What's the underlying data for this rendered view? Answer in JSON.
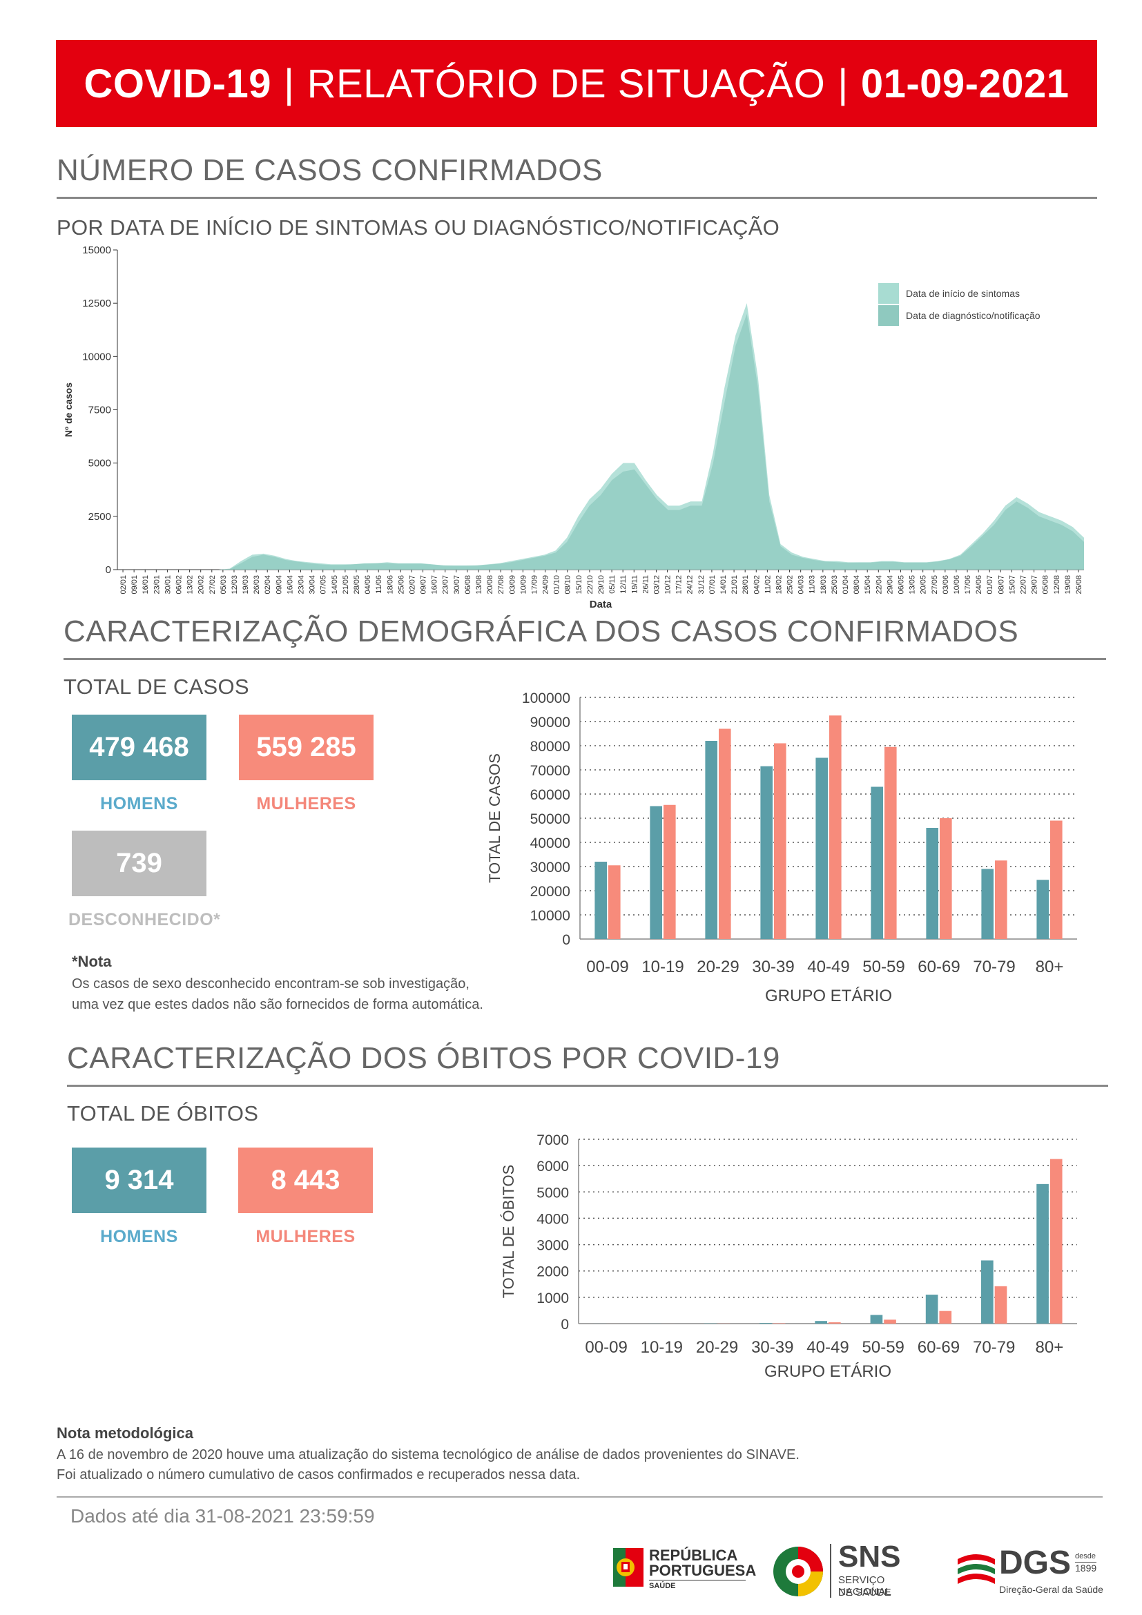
{
  "header": {
    "part1": "COVID-19",
    "sep1": "|",
    "part2": "RELATÓRIO DE SITUAÇÃO",
    "sep2": "|",
    "part3": "01-09-2021"
  },
  "section_cases": {
    "title": "NÚMERO DE CASOS CONFIRMADOS",
    "subtitle": "POR DATA DE INÍCIO DE SINTOMAS OU DIAGNÓSTICO/NOTIFICAÇÃO"
  },
  "section_demo": {
    "title": "CARACTERIZAÇÃO DEMOGRÁFICA DOS CASOS CONFIRMADOS",
    "total_label": "TOTAL DE CASOS",
    "men_value": "479 468",
    "men_label": "HOMENS",
    "women_value": "559 285",
    "women_label": "MULHERES",
    "unknown_value": "739",
    "unknown_label": "DESCONHECIDO*",
    "note_title": "*Nota",
    "note_line1": "Os casos de sexo desconhecido encontram-se sob investigação,",
    "note_line2": "uma vez que estes dados não são fornecidos de forma automática."
  },
  "section_deaths": {
    "title": "CARACTERIZAÇÃO DOS ÓBITOS POR COVID-19",
    "total_label": "TOTAL DE ÓBITOS",
    "men_value": "9 314",
    "men_label": "HOMENS",
    "women_value": "8 443",
    "women_label": "MULHERES"
  },
  "method_note": {
    "title": "Nota metodológica",
    "line1": "A 16 de novembro de 2020 houve uma atualização do sistema tecnológico de análise de dados provenientes do SINAVE.",
    "line2": "Foi atualizado o número cumulativo de casos confirmados e recuperados nessa data."
  },
  "footer": {
    "data_until": "Dados até dia 31-08-2021 23:59:59",
    "logo1_line1": "REPÚBLICA",
    "logo1_line2": "PORTUGUESA",
    "logo1_line3": "SAÚDE",
    "logo2_main": "SNS",
    "logo2_line1": "SERVIÇO NACIONAL",
    "logo2_line2": "DE SAÚDE",
    "logo3_main": "DGS",
    "logo3_since1": "desde",
    "logo3_since2": "1899",
    "logo3_sub": "Direção-Geral da Saúde",
    "colors": {
      "red": "#e3000f",
      "green": "#1e7a3b",
      "yellow": "#f2c100"
    }
  },
  "chart_data": [
    {
      "type": "area",
      "title": "",
      "xlabel": "Data",
      "ylabel": "Nº de casos",
      "ylim": [
        0,
        15000
      ],
      "yticks": [
        0,
        2500,
        5000,
        7500,
        10000,
        12500,
        15000
      ],
      "xticks": [
        "02/01",
        "09/01",
        "16/01",
        "23/01",
        "30/01",
        "06/02",
        "13/02",
        "20/02",
        "27/02",
        "05/03",
        "12/03",
        "19/03",
        "26/03",
        "02/04",
        "09/04",
        "16/04",
        "23/04",
        "30/04",
        "07/05",
        "14/05",
        "21/05",
        "28/05",
        "04/06",
        "11/06",
        "18/06",
        "25/06",
        "02/07",
        "09/07",
        "16/07",
        "23/07",
        "30/07",
        "06/08",
        "13/08",
        "20/08",
        "27/08",
        "03/09",
        "10/09",
        "17/09",
        "24/09",
        "01/10",
        "08/10",
        "15/10",
        "22/10",
        "29/10",
        "05/11",
        "12/11",
        "19/11",
        "26/11",
        "03/12",
        "10/12",
        "17/12",
        "24/12",
        "31/12",
        "07/01",
        "14/01",
        "21/01",
        "28/01",
        "04/02",
        "11/02",
        "18/02",
        "25/02",
        "04/03",
        "11/03",
        "18/03",
        "25/03",
        "01/04",
        "08/04",
        "15/04",
        "22/04",
        "29/04",
        "06/05",
        "13/05",
        "20/05",
        "27/05",
        "03/06",
        "10/06",
        "17/06",
        "24/06",
        "01/07",
        "08/07",
        "15/07",
        "22/07",
        "29/07",
        "05/08",
        "12/08",
        "19/08",
        "26/08"
      ],
      "legend_position": "top-right",
      "series": [
        {
          "name": "Data de início de sintomas",
          "color": "#a8dcd2",
          "values": [
            0,
            0,
            0,
            0,
            0,
            0,
            0,
            0,
            0,
            0,
            50,
            400,
            700,
            750,
            650,
            500,
            400,
            350,
            300,
            250,
            250,
            250,
            300,
            300,
            350,
            300,
            300,
            300,
            250,
            200,
            200,
            200,
            200,
            250,
            300,
            400,
            500,
            600,
            700,
            900,
            1500,
            2500,
            3300,
            3800,
            4500,
            5000,
            5000,
            4200,
            3500,
            3000,
            3000,
            3200,
            3200,
            5500,
            8500,
            11000,
            12500,
            9000,
            3500,
            1200,
            800,
            600,
            500,
            400,
            400,
            350,
            350,
            350,
            400,
            400,
            350,
            350,
            350,
            400,
            500,
            700,
            1200,
            1700,
            2300,
            3000,
            3400,
            3100,
            2700,
            2500,
            2300,
            2000,
            1500
          ]
        },
        {
          "name": "Data de diagnóstico/notificação",
          "color": "#8fc9bf",
          "values": [
            0,
            0,
            0,
            0,
            0,
            0,
            0,
            0,
            0,
            0,
            30,
            300,
            600,
            700,
            600,
            450,
            380,
            300,
            250,
            220,
            220,
            250,
            280,
            300,
            300,
            280,
            280,
            280,
            240,
            200,
            180,
            180,
            200,
            230,
            280,
            350,
            450,
            550,
            650,
            800,
            1300,
            2200,
            3000,
            3500,
            4200,
            4600,
            4700,
            4000,
            3300,
            2800,
            2800,
            3000,
            3000,
            5000,
            7800,
            10500,
            12000,
            8500,
            3200,
            1100,
            700,
            550,
            450,
            380,
            350,
            320,
            330,
            330,
            370,
            370,
            330,
            330,
            330,
            380,
            480,
            650,
            1100,
            1600,
            2100,
            2800,
            3200,
            2900,
            2500,
            2300,
            2100,
            1800,
            1300
          ]
        }
      ]
    },
    {
      "type": "bar",
      "title": "",
      "xlabel": "GRUPO ETÁRIO",
      "ylabel": "TOTAL DE CASOS",
      "ylim": [
        0,
        100000
      ],
      "yticks": [
        0,
        10000,
        20000,
        30000,
        40000,
        50000,
        60000,
        70000,
        80000,
        90000,
        100000
      ],
      "categories": [
        "00-09",
        "10-19",
        "20-29",
        "30-39",
        "40-49",
        "50-59",
        "60-69",
        "70-79",
        "80+"
      ],
      "series": [
        {
          "name": "HOMENS",
          "color": "#5b9ea8",
          "values": [
            32000,
            55000,
            82000,
            71500,
            75000,
            63000,
            46000,
            29000,
            24500
          ]
        },
        {
          "name": "MULHERES",
          "color": "#f78b7b",
          "values": [
            30500,
            55500,
            87000,
            81000,
            92500,
            79500,
            50000,
            32500,
            49000
          ]
        }
      ]
    },
    {
      "type": "bar",
      "title": "",
      "xlabel": "GRUPO ETÁRIO",
      "ylabel": "TOTAL DE ÓBITOS",
      "ylim": [
        0,
        7000
      ],
      "yticks": [
        0,
        1000,
        2000,
        3000,
        4000,
        5000,
        6000,
        7000
      ],
      "categories": [
        "00-09",
        "10-19",
        "20-29",
        "30-39",
        "40-49",
        "50-59",
        "60-69",
        "70-79",
        "80+"
      ],
      "series": [
        {
          "name": "HOMENS",
          "color": "#5b9ea8",
          "values": [
            2,
            3,
            10,
            25,
            100,
            330,
            1100,
            2400,
            5300
          ]
        },
        {
          "name": "MULHERES",
          "color": "#f78b7b",
          "values": [
            1,
            1,
            5,
            15,
            50,
            150,
            480,
            1420,
            6250
          ]
        }
      ]
    }
  ]
}
